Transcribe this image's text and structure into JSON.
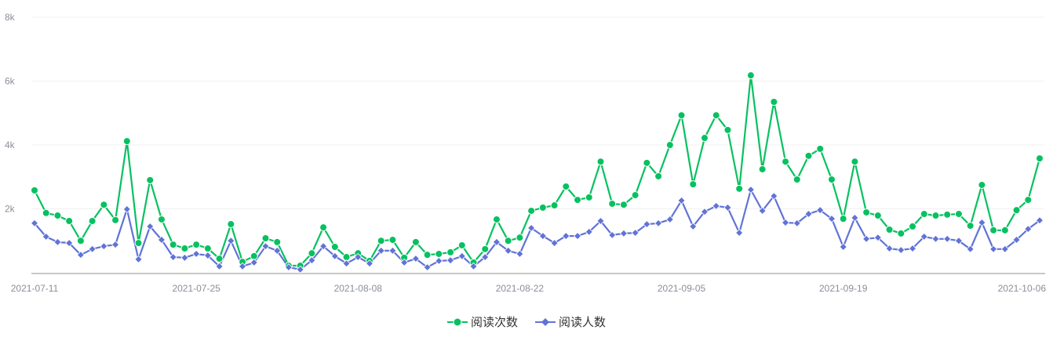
{
  "chart_data": {
    "type": "line",
    "title": "",
    "xlabel": "",
    "ylabel": "",
    "ylim": [
      0,
      8000
    ],
    "y_ticks": [
      "2k",
      "4k",
      "6k",
      "8k"
    ],
    "y_tick_values": [
      2000,
      4000,
      6000,
      8000
    ],
    "grid": true,
    "legend_placement": "bottom",
    "x_tick_labels": [
      "2021-07-11",
      "2021-07-25",
      "2021-08-08",
      "2021-08-22",
      "2021-09-05",
      "2021-09-19",
      "2021-10-06"
    ],
    "x": [
      "2021-07-11",
      "2021-07-12",
      "2021-07-13",
      "2021-07-14",
      "2021-07-15",
      "2021-07-16",
      "2021-07-17",
      "2021-07-18",
      "2021-07-19",
      "2021-07-20",
      "2021-07-21",
      "2021-07-22",
      "2021-07-23",
      "2021-07-24",
      "2021-07-25",
      "2021-07-26",
      "2021-07-27",
      "2021-07-28",
      "2021-07-29",
      "2021-07-30",
      "2021-07-31",
      "2021-08-01",
      "2021-08-02",
      "2021-08-03",
      "2021-08-04",
      "2021-08-05",
      "2021-08-06",
      "2021-08-07",
      "2021-08-08",
      "2021-08-09",
      "2021-08-10",
      "2021-08-11",
      "2021-08-12",
      "2021-08-13",
      "2021-08-14",
      "2021-08-15",
      "2021-08-16",
      "2021-08-17",
      "2021-08-18",
      "2021-08-19",
      "2021-08-20",
      "2021-08-21",
      "2021-08-22",
      "2021-08-23",
      "2021-08-24",
      "2021-08-25",
      "2021-08-26",
      "2021-08-27",
      "2021-08-28",
      "2021-08-29",
      "2021-08-30",
      "2021-08-31",
      "2021-09-01",
      "2021-09-02",
      "2021-09-03",
      "2021-09-04",
      "2021-09-05",
      "2021-09-06",
      "2021-09-07",
      "2021-09-08",
      "2021-09-09",
      "2021-09-10",
      "2021-09-11",
      "2021-09-12",
      "2021-09-13",
      "2021-09-14",
      "2021-09-15",
      "2021-09-16",
      "2021-09-17",
      "2021-09-18",
      "2021-09-19",
      "2021-09-20",
      "2021-09-21",
      "2021-09-22",
      "2021-09-23",
      "2021-09-24",
      "2021-09-25",
      "2021-09-26",
      "2021-09-27",
      "2021-09-28",
      "2021-09-29",
      "2021-09-30",
      "2021-10-01",
      "2021-10-02",
      "2021-10-03",
      "2021-10-04",
      "2021-10-05",
      "2021-10-06"
    ],
    "series": [
      {
        "name": "阅读次数",
        "color": "#07c160",
        "marker": "circle",
        "values": [
          2580,
          1870,
          1790,
          1620,
          1000,
          1620,
          2130,
          1650,
          4120,
          930,
          2900,
          1670,
          880,
          760,
          880,
          760,
          440,
          1520,
          340,
          520,
          1080,
          960,
          220,
          220,
          610,
          1420,
          810,
          490,
          610,
          370,
          1000,
          1030,
          470,
          960,
          560,
          590,
          640,
          860,
          320,
          740,
          1670,
          1000,
          1100,
          1940,
          2040,
          2110,
          2700,
          2280,
          2360,
          3480,
          2160,
          2130,
          2430,
          3440,
          3020,
          4000,
          4930,
          2770,
          4220,
          4930,
          4470,
          2630,
          6180,
          3240,
          5350,
          3480,
          2920,
          3660,
          3880,
          2920,
          1690,
          3480,
          1890,
          1790,
          1350,
          1230,
          1450,
          1840,
          1790,
          1820,
          1840,
          1470,
          2750,
          1330,
          1330,
          1960,
          2280,
          3580
        ]
      },
      {
        "name": "阅读人数",
        "color": "#6173d6",
        "marker": "diamond",
        "values": [
          1550,
          1130,
          960,
          930,
          560,
          740,
          830,
          880,
          1990,
          420,
          1450,
          1030,
          490,
          470,
          590,
          540,
          200,
          1000,
          200,
          320,
          830,
          690,
          170,
          100,
          390,
          830,
          520,
          290,
          490,
          290,
          690,
          690,
          320,
          440,
          170,
          370,
          390,
          520,
          200,
          490,
          960,
          690,
          590,
          1400,
          1150,
          930,
          1150,
          1150,
          1280,
          1620,
          1180,
          1230,
          1250,
          1520,
          1550,
          1670,
          2260,
          1450,
          1910,
          2090,
          2040,
          1250,
          2600,
          1940,
          2400,
          1570,
          1550,
          1840,
          1960,
          1690,
          810,
          1720,
          1060,
          1100,
          760,
          710,
          760,
          1130,
          1060,
          1060,
          1000,
          740,
          1570,
          740,
          740,
          1030,
          1370,
          1640
        ]
      }
    ]
  }
}
